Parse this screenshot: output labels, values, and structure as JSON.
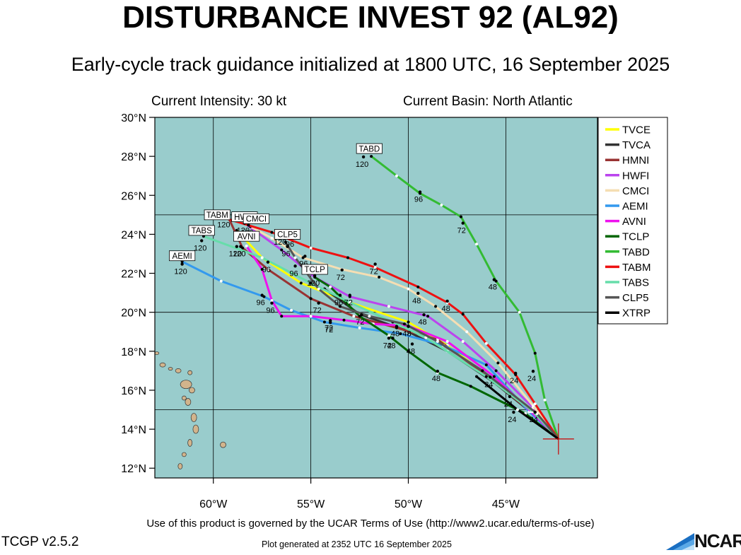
{
  "header": {
    "title": "DISTURBANCE INVEST 92 (AL92)",
    "subtitle": "Early-cycle track guidance initialized at 1800 UTC, 16 September 2025"
  },
  "info": {
    "intensity": "Current Intensity: 30 kt",
    "basin": "Current Basin: North Atlantic"
  },
  "footer": {
    "terms": "Use of this product is governed by the UCAR Terms of Use (http://www2.ucar.edu/terms-of-use)",
    "version": "TCGP v2.5.2",
    "generated": "Plot generated at 2352 UTC   16 September 2025",
    "logo_text": "NCAR"
  },
  "colors": {
    "ocean": "#99cccc",
    "land": "#d2b48c",
    "origin_marker": "#cc0000"
  },
  "chart_data": {
    "type": "line",
    "xlabel": "",
    "ylabel": "",
    "xlim": [
      -63,
      -40.3
    ],
    "ylim": [
      11.5,
      30
    ],
    "x_ticks": [
      -60,
      -55,
      -50,
      -45
    ],
    "x_tick_labels": [
      "60°W",
      "55°W",
      "50°W",
      "45°W"
    ],
    "y_ticks": [
      12,
      14,
      16,
      18,
      20,
      22,
      24,
      26,
      28,
      30
    ],
    "y_tick_labels": [
      "12°N",
      "14°N",
      "16°N",
      "18°N",
      "20°N",
      "22°N",
      "24°N",
      "26°N",
      "28°N",
      "30°N"
    ],
    "gridlines": {
      "lon": [
        -60,
        -55,
        -50,
        -45
      ],
      "lat": [
        15,
        20,
        25
      ]
    },
    "origin": {
      "lon": -42.3,
      "lat": 13.5
    },
    "legend_position": "right",
    "series": [
      {
        "name": "TVCE",
        "color": "#ffff00",
        "track": [
          [
            -42.3,
            13.5
          ],
          [
            -43.5,
            14.8
          ],
          [
            -45.6,
            16.5
          ],
          [
            -48,
            18.3
          ],
          [
            -50,
            19.5
          ],
          [
            -53,
            20.5
          ],
          [
            -55.5,
            21.5
          ],
          [
            -57.5,
            22.8
          ],
          [
            -58.8,
            24.2
          ]
        ],
        "labels": []
      },
      {
        "name": "TVCA",
        "color": "#333333",
        "track": [
          [
            -42.3,
            13.5
          ],
          [
            -43.5,
            14.7
          ],
          [
            -45.6,
            16.4
          ],
          [
            -48,
            18
          ],
          [
            -50.2,
            19.1
          ],
          [
            -52.5,
            19.9
          ],
          [
            -54.3,
            21.2
          ]
        ],
        "labels": []
      },
      {
        "name": "HMNI",
        "color": "#993333",
        "track": [
          [
            -42.3,
            13.5
          ],
          [
            -43.7,
            14.9
          ],
          [
            -45.8,
            16.6
          ],
          [
            -48.5,
            18.6
          ],
          [
            -50.6,
            19.2
          ],
          [
            -52.8,
            19.8
          ],
          [
            -55,
            20.7
          ],
          [
            -57.2,
            22.2
          ],
          [
            -58.5,
            23.3
          ],
          [
            -59.2,
            24.8
          ]
        ],
        "labels": [
          {
            "lon": -45.8,
            "lat": 16.6,
            "text": "24"
          },
          {
            "lon": -50.6,
            "lat": 19.2,
            "text": "48"
          },
          {
            "lon": -54.6,
            "lat": 20.4,
            "text": "72"
          },
          {
            "lon": -57.2,
            "lat": 22.5,
            "text": "96"
          },
          {
            "lon": -58.8,
            "lat": 23.3,
            "text": "120"
          }
        ]
      },
      {
        "name": "HWFI",
        "color": "#bb44ee",
        "track": [
          [
            -42.3,
            13.5
          ],
          [
            -43.6,
            15.1
          ],
          [
            -45.5,
            17
          ],
          [
            -47.2,
            18.5
          ],
          [
            -49,
            19.8
          ],
          [
            -51,
            20.3
          ],
          [
            -53,
            20.8
          ],
          [
            -54.8,
            21.8
          ],
          [
            -56.5,
            23.2
          ],
          [
            -58.3,
            24.5
          ]
        ],
        "labels": [
          {
            "lon": -49.2,
            "lat": 19.8,
            "text": "48"
          },
          {
            "lon": -53,
            "lat": 20.8,
            "text": "72"
          },
          {
            "lon": -55.8,
            "lat": 22.3,
            "text": "96"
          },
          {
            "lon": -58.4,
            "lat": 24.5,
            "text": "120"
          }
        ]
      },
      {
        "name": "CMCI",
        "color": "#f5deb3",
        "track": [
          [
            -42.3,
            13.5
          ],
          [
            -43.6,
            15.2
          ],
          [
            -45.4,
            17.4
          ],
          [
            -47,
            19
          ],
          [
            -48.6,
            20.3
          ],
          [
            -50,
            21.2
          ],
          [
            -51.5,
            21.8
          ],
          [
            -53.4,
            22.2
          ],
          [
            -55.4,
            22.8
          ],
          [
            -57,
            23.8
          ],
          [
            -58.1,
            24.4
          ]
        ],
        "labels": [
          {
            "lon": -49.5,
            "lat": 20.9,
            "text": "48"
          },
          {
            "lon": -53.4,
            "lat": 22.1,
            "text": "72"
          },
          {
            "lon": -56.2,
            "lat": 23.3,
            "text": "96"
          },
          {
            "lon": -58.2,
            "lat": 24.4,
            "text": "120"
          }
        ]
      },
      {
        "name": "AEMI",
        "color": "#3399ee",
        "track": [
          [
            -42.3,
            13.5
          ],
          [
            -43.8,
            14.9
          ],
          [
            -46,
            17.3
          ],
          [
            -48.2,
            18.3
          ],
          [
            -50.4,
            18.9
          ],
          [
            -52.5,
            19.2
          ],
          [
            -54.3,
            19.5
          ],
          [
            -56,
            20.1
          ],
          [
            -57.4,
            20.8
          ],
          [
            -59.6,
            21.6
          ],
          [
            -61.6,
            22.6
          ]
        ],
        "labels": [
          {
            "lon": -50.8,
            "lat": 18.6,
            "text": "48"
          },
          {
            "lon": -54,
            "lat": 19.4,
            "text": "72"
          },
          {
            "lon": -57.5,
            "lat": 20.8,
            "text": "96"
          },
          {
            "lon": -61.6,
            "lat": 22.4,
            "text": "120"
          }
        ]
      },
      {
        "name": "AVNI",
        "color": "#ee11ee",
        "track": [
          [
            -42.3,
            13.5
          ],
          [
            -43.7,
            14.9
          ],
          [
            -45.6,
            16.7
          ],
          [
            -48,
            18.5
          ],
          [
            -50,
            19.3
          ],
          [
            -51.8,
            19.4
          ],
          [
            -53.3,
            19.6
          ],
          [
            -55,
            19.8
          ],
          [
            -56.5,
            19.8
          ],
          [
            -57,
            20.6
          ],
          [
            -57.5,
            22.2
          ],
          [
            -58.3,
            23.4
          ]
        ],
        "labels": [
          {
            "lon": -50,
            "lat": 19.2,
            "text": "48"
          },
          {
            "lon": -54,
            "lat": 19.5,
            "text": "72"
          },
          {
            "lon": -57,
            "lat": 20.4,
            "text": "96"
          },
          {
            "lon": -58.6,
            "lat": 23.3,
            "text": "120"
          }
        ]
      },
      {
        "name": "TCLP",
        "color": "#006600",
        "track": [
          [
            -42.3,
            13.5
          ],
          [
            -44,
            14.8
          ],
          [
            -46.8,
            16.2
          ],
          [
            -48.5,
            16.9
          ],
          [
            -50,
            18
          ],
          [
            -51,
            18.8
          ],
          [
            -52.5,
            19.8
          ],
          [
            -54,
            21.3
          ],
          [
            -54.8,
            21.8
          ]
        ],
        "labels": [
          {
            "lon": -44.6,
            "lat": 14.8,
            "text": "24"
          },
          {
            "lon": -48.5,
            "lat": 16.9,
            "text": "48"
          },
          {
            "lon": -51,
            "lat": 18.6,
            "text": "72"
          },
          {
            "lon": -53.5,
            "lat": 20.8,
            "text": "96"
          },
          {
            "lon": -54.8,
            "lat": 21.8,
            "text": "120"
          }
        ]
      },
      {
        "name": "TABD",
        "color": "#33bb33",
        "track": [
          [
            -42.3,
            13.5
          ],
          [
            -43,
            15.5
          ],
          [
            -43.5,
            17.9
          ],
          [
            -44.3,
            20
          ],
          [
            -45.5,
            21.6
          ],
          [
            -46.5,
            23.5
          ],
          [
            -47.3,
            24.9
          ],
          [
            -48.3,
            25.5
          ],
          [
            -49.4,
            26.1
          ],
          [
            -50.6,
            27
          ],
          [
            -51.9,
            28
          ]
        ],
        "labels": [
          {
            "lon": -43.6,
            "lat": 16.9,
            "text": "24"
          },
          {
            "lon": -45.6,
            "lat": 21.6,
            "text": "48"
          },
          {
            "lon": -47.2,
            "lat": 24.5,
            "text": "72"
          },
          {
            "lon": -49.4,
            "lat": 26.1,
            "text": "96"
          },
          {
            "lon": -52.3,
            "lat": 27.9,
            "text": "120"
          }
        ]
      },
      {
        "name": "TABM",
        "color": "#ee1111",
        "track": [
          [
            -42.3,
            13.5
          ],
          [
            -43.5,
            15.3
          ],
          [
            -44.5,
            16.8
          ],
          [
            -46,
            18.4
          ],
          [
            -47.2,
            19.9
          ],
          [
            -48,
            20.5
          ],
          [
            -49.5,
            21.3
          ],
          [
            -51.7,
            22.3
          ],
          [
            -53.1,
            22.8
          ],
          [
            -55,
            23.3
          ],
          [
            -57,
            24.1
          ],
          [
            -59.3,
            24.8
          ]
        ],
        "labels": [
          {
            "lon": -44.5,
            "lat": 16.8,
            "text": "24"
          },
          {
            "lon": -48,
            "lat": 20.5,
            "text": "48"
          },
          {
            "lon": -51.7,
            "lat": 22.4,
            "text": "72"
          },
          {
            "lon": -56,
            "lat": 23.8,
            "text": "96"
          },
          {
            "lon": -59.4,
            "lat": 24.8,
            "text": "120"
          }
        ]
      },
      {
        "name": "TABS",
        "color": "#66ddaa",
        "track": [
          [
            -42.3,
            13.5
          ],
          [
            -43.6,
            14.9
          ],
          [
            -46,
            16.7
          ],
          [
            -49.1,
            18.7
          ],
          [
            -50.8,
            19.5
          ],
          [
            -53,
            20.5
          ],
          [
            -55,
            21.5
          ],
          [
            -57.5,
            22.8
          ],
          [
            -60.5,
            23.9
          ]
        ],
        "labels": [
          {
            "lon": -60.6,
            "lat": 23.6,
            "text": "120"
          }
        ]
      },
      {
        "name": "CLP5",
        "color": "#555555",
        "track": [
          [
            -42.3,
            13.5
          ],
          [
            -43.4,
            14.8
          ],
          [
            -46.2,
            17
          ],
          [
            -48.5,
            18.5
          ],
          [
            -50.2,
            19.4
          ],
          [
            -52,
            19.8
          ],
          [
            -53.5,
            20.3
          ],
          [
            -54.6,
            21.2
          ],
          [
            -55.2,
            22
          ],
          [
            -55.8,
            22.8
          ],
          [
            -56.3,
            23.6
          ]
        ],
        "labels": [
          {
            "lon": -43.5,
            "lat": 14.8,
            "text": "24"
          },
          {
            "lon": -49.8,
            "lat": 18.3,
            "text": "48"
          },
          {
            "lon": -52.4,
            "lat": 19.8,
            "text": "72"
          },
          {
            "lon": -55.3,
            "lat": 22.8,
            "text": "96"
          },
          {
            "lon": -56.5,
            "lat": 23.9,
            "text": "120"
          }
        ]
      },
      {
        "name": "XTRP",
        "color": "#000000",
        "track": [
          [
            -42.3,
            13.5
          ],
          [
            -44.4,
            15
          ],
          [
            -46.5,
            16.7
          ]
        ],
        "labels": [
          {
            "lon": -44.8,
            "lat": 15.6,
            "text": "24"
          }
        ]
      }
    ],
    "box_labels": [
      {
        "text": "TABD",
        "lon": -52,
        "lat": 28.4
      },
      {
        "text": "TABM",
        "lon": -59.8,
        "lat": 25.0
      },
      {
        "text": "HWFI",
        "lon": -58.4,
        "lat": 24.9
      },
      {
        "text": "CMCI",
        "lon": -57.8,
        "lat": 24.8
      },
      {
        "text": "TABS",
        "lon": -60.6,
        "lat": 24.2
      },
      {
        "text": "CLP5",
        "lon": -56.2,
        "lat": 24.0
      },
      {
        "text": "AVNI",
        "lon": -58.3,
        "lat": 23.9
      },
      {
        "text": "AEMI",
        "lon": -61.6,
        "lat": 22.9
      },
      {
        "text": "TCLP",
        "lon": -54.8,
        "lat": 22.2
      }
    ]
  }
}
